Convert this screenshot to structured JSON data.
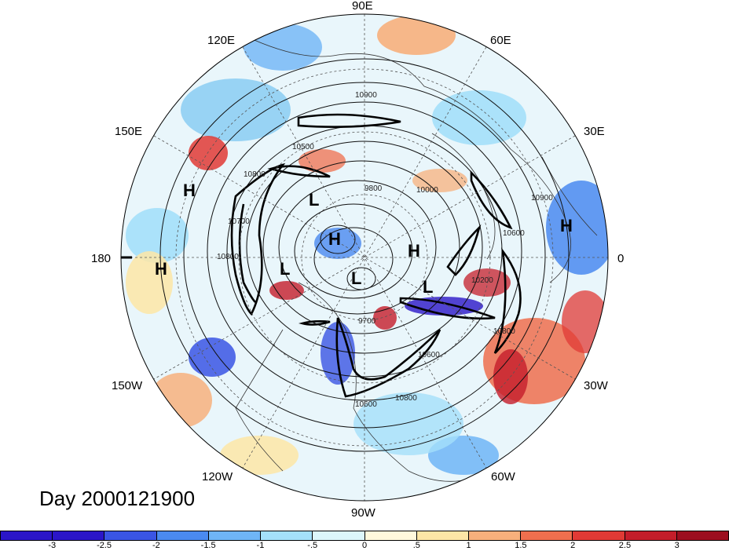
{
  "map": {
    "projection": "north-polar-stereographic",
    "longitude_labels": [
      "90E",
      "120E",
      "60E",
      "150E",
      "30E",
      "180",
      "0",
      "150W",
      "30W",
      "120W",
      "60W",
      "90W"
    ],
    "contour_labels": [
      "10900",
      "10500",
      "10800",
      "9800",
      "10000",
      "10900",
      "10600",
      "10700",
      "10800",
      "10200",
      "9700",
      "10600",
      "10800",
      "10600",
      "10800"
    ],
    "pressure_centers": [
      {
        "type": "H",
        "label": "H"
      },
      {
        "type": "H",
        "label": "H"
      },
      {
        "type": "H",
        "label": "H"
      },
      {
        "type": "H",
        "label": "H"
      },
      {
        "type": "L",
        "label": "L"
      },
      {
        "type": "L",
        "label": "L"
      },
      {
        "type": "L",
        "label": "L"
      },
      {
        "type": "L",
        "label": "L"
      }
    ]
  },
  "title": "Day 2000121900",
  "colorbar": {
    "colors": [
      "#2b16c8",
      "#3a55e4",
      "#4a8af0",
      "#6fb5f6",
      "#a4e0fa",
      "#dcf6fb",
      "#fff8dc",
      "#fde6a6",
      "#f7b07c",
      "#ef6f4e",
      "#e03a35",
      "#c41d2a",
      "#9c0e1f"
    ],
    "tick_labels": [
      "-3",
      "-2.5",
      "-2",
      "-1.5",
      "-1",
      "-.5",
      "0",
      ".5",
      "1",
      "1.5",
      "2",
      "2.5",
      "3"
    ]
  }
}
